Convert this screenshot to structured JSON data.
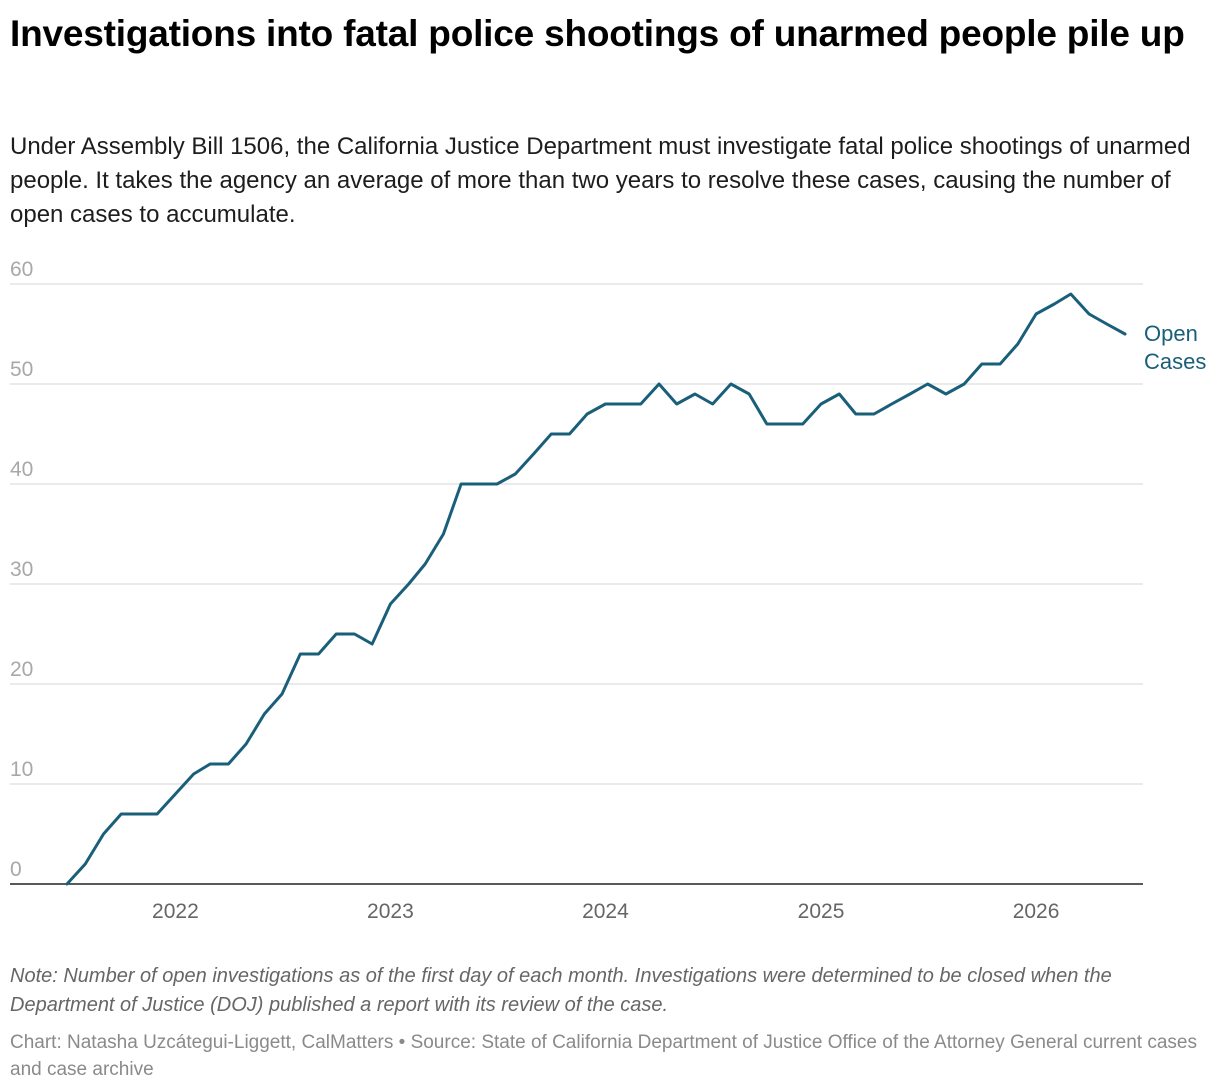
{
  "header": {
    "title": "Investigations into fatal police shootings of unarmed people pile up",
    "subtitle": "Under Assembly Bill 1506, the California Justice Department must investigate fatal police shootings of unarmed people. It takes the agency an average of more than two years to resolve these cases, causing the number of open cases to accumulate."
  },
  "footer": {
    "note": "Note: Number of open investigations as of the first day of each month. Investigations were determined to be closed when the Department of Justice (DOJ) published a report with its review of the case.",
    "credit_chart": "Chart: Natasha Uzcátegui-Liggett, CalMatters",
    "separator": "•",
    "credit_source": "Source: State of California Department of Justice Office of the Attorney General current cases and case archive"
  },
  "colors": {
    "line": "#1a5f7a",
    "grid": "#dddddd",
    "axis": "#222222",
    "tick_text": "#a8a8a8",
    "x_tick_text": "#666666"
  },
  "chart_data": {
    "type": "line",
    "title": "Investigations into fatal police shootings of unarmed people pile up",
    "xlabel": "",
    "ylabel": "",
    "ylim": [
      0,
      60
    ],
    "xlim": [
      "2021-06-01",
      "2026-07-01"
    ],
    "y_ticks": [
      0,
      10,
      20,
      30,
      40,
      50,
      60
    ],
    "x_ticks": [
      {
        "label": "2022",
        "date": "2022-01-01"
      },
      {
        "label": "2023",
        "date": "2023-01-01"
      },
      {
        "label": "2024",
        "date": "2024-01-01"
      },
      {
        "label": "2025",
        "date": "2025-01-01"
      },
      {
        "label": "2026",
        "date": "2026-01-01"
      }
    ],
    "grid": true,
    "series": [
      {
        "name": "Open Cases",
        "label_lines": [
          "Open",
          "Cases"
        ],
        "points": [
          [
            "2021-07-01",
            0
          ],
          [
            "2021-08-01",
            2
          ],
          [
            "2021-09-01",
            5
          ],
          [
            "2021-10-01",
            7
          ],
          [
            "2021-11-01",
            7
          ],
          [
            "2021-12-01",
            7
          ],
          [
            "2022-01-01",
            9
          ],
          [
            "2022-02-01",
            11
          ],
          [
            "2022-03-01",
            12
          ],
          [
            "2022-04-01",
            12
          ],
          [
            "2022-05-01",
            14
          ],
          [
            "2022-06-01",
            17
          ],
          [
            "2022-07-01",
            19
          ],
          [
            "2022-08-01",
            23
          ],
          [
            "2022-09-01",
            23
          ],
          [
            "2022-10-01",
            25
          ],
          [
            "2022-11-01",
            25
          ],
          [
            "2022-12-01",
            24
          ],
          [
            "2023-01-01",
            28
          ],
          [
            "2023-02-01",
            30
          ],
          [
            "2023-03-01",
            32
          ],
          [
            "2023-04-01",
            35
          ],
          [
            "2023-05-01",
            40
          ],
          [
            "2023-06-01",
            40
          ],
          [
            "2023-07-01",
            40
          ],
          [
            "2023-08-01",
            41
          ],
          [
            "2023-09-01",
            43
          ],
          [
            "2023-10-01",
            45
          ],
          [
            "2023-11-01",
            45
          ],
          [
            "2023-12-01",
            47
          ],
          [
            "2024-01-01",
            48
          ],
          [
            "2024-02-01",
            48
          ],
          [
            "2024-03-01",
            48
          ],
          [
            "2024-04-01",
            50
          ],
          [
            "2024-05-01",
            48
          ],
          [
            "2024-06-01",
            49
          ],
          [
            "2024-07-01",
            48
          ],
          [
            "2024-08-01",
            50
          ],
          [
            "2024-09-01",
            49
          ],
          [
            "2024-10-01",
            46
          ],
          [
            "2024-11-01",
            46
          ],
          [
            "2024-12-01",
            46
          ],
          [
            "2025-01-01",
            48
          ],
          [
            "2025-02-01",
            49
          ],
          [
            "2025-03-01",
            47
          ],
          [
            "2025-04-01",
            47
          ],
          [
            "2025-05-01",
            48
          ],
          [
            "2025-06-01",
            49
          ],
          [
            "2025-07-01",
            50
          ],
          [
            "2025-08-01",
            49
          ],
          [
            "2025-09-01",
            50
          ],
          [
            "2025-10-01",
            52
          ],
          [
            "2025-11-01",
            52
          ],
          [
            "2025-12-01",
            54
          ],
          [
            "2026-01-01",
            57
          ],
          [
            "2026-02-01",
            58
          ],
          [
            "2026-03-01",
            59
          ],
          [
            "2026-04-01",
            57
          ],
          [
            "2026-05-01",
            56
          ],
          [
            "2026-06-01",
            55
          ]
        ]
      }
    ]
  }
}
